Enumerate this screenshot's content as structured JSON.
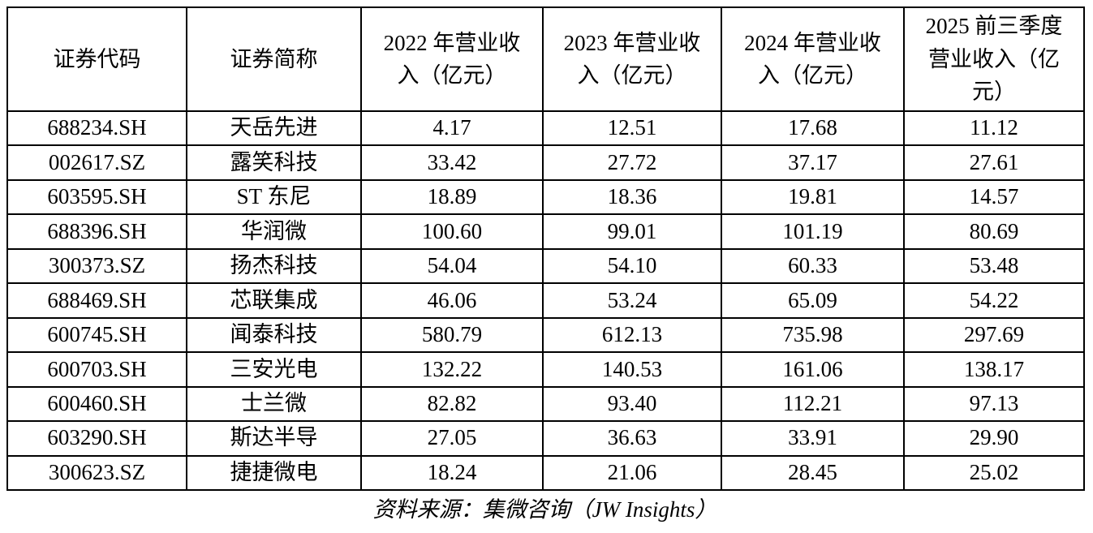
{
  "chart_data": {
    "type": "table",
    "columns": [
      "证券代码",
      "证券简称",
      "2022 年营业收入（亿元）",
      "2023 年营业收入（亿元）",
      "2024 年营业收入（亿元）",
      "2025 前三季度营业收入（亿元）"
    ],
    "rows": [
      [
        "688234.SH",
        "天岳先进",
        "4.17",
        "12.51",
        "17.68",
        "11.12"
      ],
      [
        "002617.SZ",
        "露笑科技",
        "33.42",
        "27.72",
        "37.17",
        "27.61"
      ],
      [
        "603595.SH",
        "ST 东尼",
        "18.89",
        "18.36",
        "19.81",
        "14.57"
      ],
      [
        "688396.SH",
        "华润微",
        "100.60",
        "99.01",
        "101.19",
        "80.69"
      ],
      [
        "300373.SZ",
        "扬杰科技",
        "54.04",
        "54.10",
        "60.33",
        "53.48"
      ],
      [
        "688469.SH",
        "芯联集成",
        "46.06",
        "53.24",
        "65.09",
        "54.22"
      ],
      [
        "600745.SH",
        "闻泰科技",
        "580.79",
        "612.13",
        "735.98",
        "297.69"
      ],
      [
        "600703.SH",
        "三安光电",
        "132.22",
        "140.53",
        "161.06",
        "138.17"
      ],
      [
        "600460.SH",
        "士兰微",
        "82.82",
        "93.40",
        "112.21",
        "97.13"
      ],
      [
        "603290.SH",
        "斯达半导",
        "27.05",
        "36.63",
        "33.91",
        "29.90"
      ],
      [
        "300623.SZ",
        "捷捷微电",
        "18.24",
        "21.06",
        "28.45",
        "25.02"
      ]
    ],
    "source": "资料来源：集微咨询（JW Insights）",
    "layout": {
      "grid": true,
      "unit": "亿元"
    }
  },
  "table": {
    "columns": [
      {
        "label": "证券代码"
      },
      {
        "label": "证券简称"
      },
      {
        "label": [
          "2022 年营业收",
          "入（亿元）"
        ]
      },
      {
        "label": [
          "2023 年营业收",
          "入（亿元）"
        ]
      },
      {
        "label": [
          "2024 年营业收",
          "入（亿元）"
        ]
      },
      {
        "label": [
          "2025 前三季度",
          "营业收入（亿",
          "元）"
        ]
      }
    ],
    "rows": [
      [
        "688234.SH",
        "天岳先进",
        "4.17",
        "12.51",
        "17.68",
        "11.12"
      ],
      [
        "002617.SZ",
        "露笑科技",
        "33.42",
        "27.72",
        "37.17",
        "27.61"
      ],
      [
        "603595.SH",
        "ST 东尼",
        "18.89",
        "18.36",
        "19.81",
        "14.57"
      ],
      [
        "688396.SH",
        "华润微",
        "100.60",
        "99.01",
        "101.19",
        "80.69"
      ],
      [
        "300373.SZ",
        "扬杰科技",
        "54.04",
        "54.10",
        "60.33",
        "53.48"
      ],
      [
        "688469.SH",
        "芯联集成",
        "46.06",
        "53.24",
        "65.09",
        "54.22"
      ],
      [
        "600745.SH",
        "闻泰科技",
        "580.79",
        "612.13",
        "735.98",
        "297.69"
      ],
      [
        "600703.SH",
        "三安光电",
        "132.22",
        "140.53",
        "161.06",
        "138.17"
      ],
      [
        "600460.SH",
        "士兰微",
        "82.82",
        "93.40",
        "112.21",
        "97.13"
      ],
      [
        "603290.SH",
        "斯达半导",
        "27.05",
        "36.63",
        "33.91",
        "29.90"
      ],
      [
        "300623.SZ",
        "捷捷微电",
        "18.24",
        "21.06",
        "28.45",
        "25.02"
      ]
    ]
  },
  "footer": {
    "source_label": "资料来源：集微咨询（JW Insights）"
  },
  "colors": {
    "background": "#ffffff",
    "border": "#000000",
    "text": "#000000"
  }
}
